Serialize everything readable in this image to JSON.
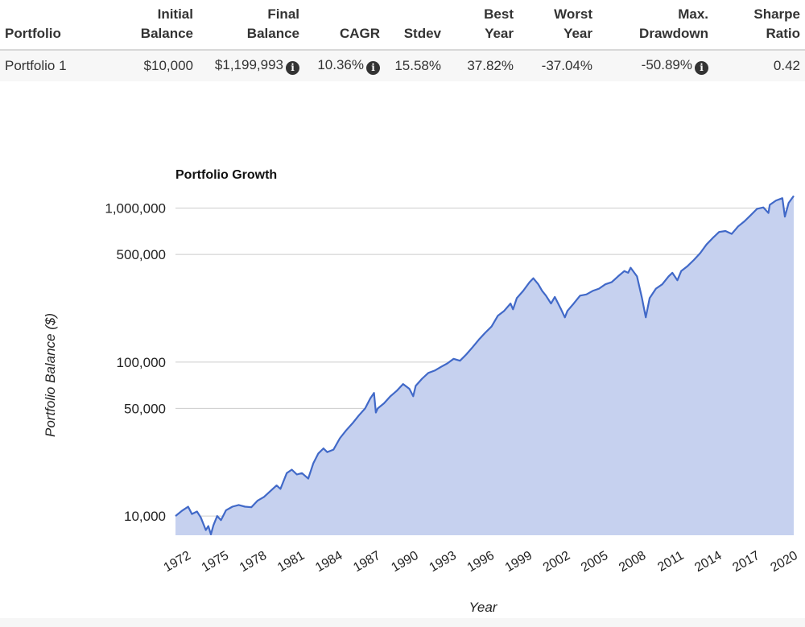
{
  "table": {
    "headers": [
      {
        "line1": "",
        "line2": "Portfolio",
        "align": "left"
      },
      {
        "line1": "Initial",
        "line2": "Balance",
        "align": "right"
      },
      {
        "line1": "Final",
        "line2": "Balance",
        "align": "right"
      },
      {
        "line1": "",
        "line2": "CAGR",
        "align": "right"
      },
      {
        "line1": "",
        "line2": "Stdev",
        "align": "right"
      },
      {
        "line1": "Best",
        "line2": "Year",
        "align": "right"
      },
      {
        "line1": "Worst",
        "line2": "Year",
        "align": "right"
      },
      {
        "line1": "Max.",
        "line2": "Drawdown",
        "align": "right"
      },
      {
        "line1": "Sharpe",
        "line2": "Ratio",
        "align": "right"
      }
    ],
    "row": {
      "portfolio": "Portfolio 1",
      "initial_balance": "$10,000",
      "final_balance": "$1,199,993",
      "cagr": "10.36%",
      "stdev": "15.58%",
      "best_year": "37.82%",
      "worst_year": "-37.04%",
      "max_drawdown": "-50.89%",
      "sharpe_ratio": "0.42"
    },
    "info_icon": "info-circle-icon"
  },
  "chart_data": {
    "type": "area",
    "title": "Portfolio Growth",
    "xlabel": "Year",
    "ylabel": "Portfolio Balance ($)",
    "yscale": "log",
    "ylim": [
      7500,
      1250000
    ],
    "xlim": [
      1972,
      2020.9
    ],
    "x_ticks": [
      1972,
      1975,
      1978,
      1981,
      1984,
      1987,
      1990,
      1993,
      1996,
      1999,
      2002,
      2005,
      2008,
      2011,
      2014,
      2017,
      2020
    ],
    "y_ticks": [
      {
        "value": 10000,
        "label": "10,000"
      },
      {
        "value": 50000,
        "label": "50,000"
      },
      {
        "value": 100000,
        "label": "100,000"
      },
      {
        "value": 500000,
        "label": "500,000"
      },
      {
        "value": 1000000,
        "label": "1,000,000"
      }
    ],
    "grid": true,
    "legend": "none",
    "line_color": "#4169c8",
    "fill_color": "#c6d1ef",
    "series": [
      {
        "x": [
          1972.0,
          1972.5,
          1973.0,
          1973.3,
          1973.7,
          1974.0,
          1974.4,
          1974.6,
          1974.8,
          1975.0,
          1975.3,
          1975.6,
          1976.0,
          1976.5,
          1977.0,
          1977.5,
          1978.0,
          1978.5,
          1979.0,
          1979.5,
          1980.0,
          1980.3,
          1980.8,
          1981.2,
          1981.6,
          1982.0,
          1982.5,
          1982.9,
          1983.3,
          1983.7,
          1984.0,
          1984.5,
          1985.0,
          1985.5,
          1986.0,
          1986.5,
          1987.0,
          1987.4,
          1987.7,
          1987.85,
          1988.0,
          1988.5,
          1989.0,
          1989.5,
          1990.0,
          1990.5,
          1990.8,
          1991.0,
          1991.5,
          1992.0,
          1992.5,
          1993.0,
          1993.5,
          1994.0,
          1994.5,
          1995.0,
          1995.5,
          1996.0,
          1996.5,
          1997.0,
          1997.5,
          1998.0,
          1998.5,
          1998.7,
          1999.0,
          1999.5,
          2000.0,
          2000.3,
          2000.7,
          2001.0,
          2001.3,
          2001.7,
          2002.0,
          2002.5,
          2002.8,
          2003.0,
          2003.5,
          2004.0,
          2004.5,
          2005.0,
          2005.5,
          2006.0,
          2006.5,
          2007.0,
          2007.5,
          2007.8,
          2008.0,
          2008.5,
          2008.9,
          2009.2,
          2009.5,
          2010.0,
          2010.5,
          2011.0,
          2011.3,
          2011.7,
          2012.0,
          2012.5,
          2013.0,
          2013.5,
          2014.0,
          2014.5,
          2015.0,
          2015.5,
          2016.0,
          2016.5,
          2017.0,
          2017.5,
          2018.0,
          2018.5,
          2018.9,
          2019.0,
          2019.5,
          2020.0,
          2020.2,
          2020.5,
          2020.9
        ],
        "values": [
          10000,
          10800,
          11500,
          10300,
          10700,
          9800,
          8100,
          8600,
          7600,
          8700,
          10000,
          9400,
          10900,
          11500,
          11800,
          11500,
          11400,
          12600,
          13300,
          14500,
          15800,
          15000,
          19000,
          20000,
          18600,
          19000,
          17500,
          22000,
          25500,
          27500,
          26000,
          27000,
          32000,
          36000,
          40000,
          45000,
          50000,
          58000,
          63000,
          47000,
          50000,
          54000,
          60000,
          65000,
          72000,
          67000,
          60000,
          70000,
          78000,
          85000,
          88000,
          93000,
          98000,
          105000,
          102000,
          112000,
          125000,
          140000,
          155000,
          170000,
          200000,
          215000,
          240000,
          220000,
          260000,
          290000,
          330000,
          350000,
          320000,
          290000,
          270000,
          240000,
          265000,
          220000,
          195000,
          215000,
          240000,
          270000,
          275000,
          290000,
          300000,
          320000,
          330000,
          360000,
          390000,
          380000,
          410000,
          360000,
          260000,
          195000,
          260000,
          300000,
          320000,
          360000,
          380000,
          340000,
          390000,
          420000,
          460000,
          510000,
          580000,
          640000,
          700000,
          710000,
          680000,
          760000,
          820000,
          900000,
          990000,
          1010000,
          930000,
          1050000,
          1120000,
          1160000,
          880000,
          1080000,
          1200000
        ]
      }
    ]
  }
}
